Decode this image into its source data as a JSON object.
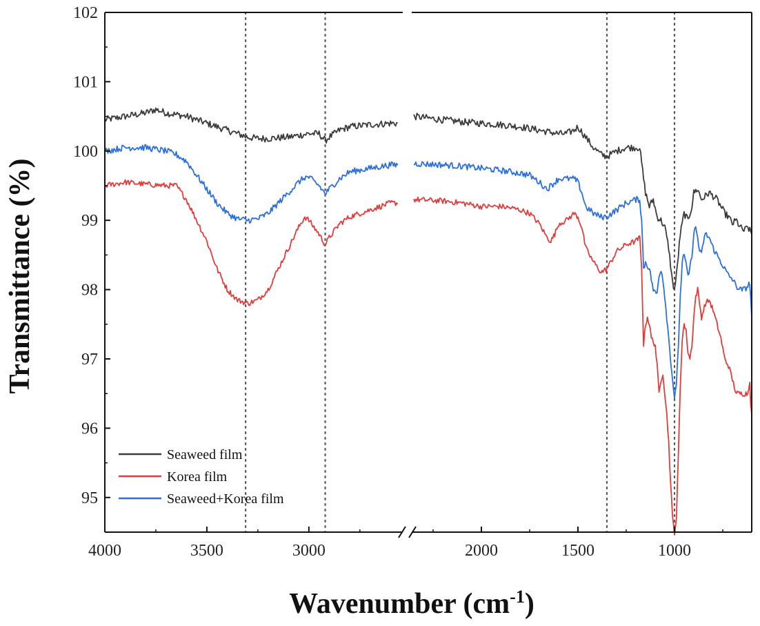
{
  "chart_data": {
    "type": "line",
    "title": "",
    "xlabel": "Wavenumber (cm",
    "xlabel_sup": "-1",
    "xlabel_close": ")",
    "ylabel": "Transmittance (%)",
    "xlim_left": [
      4000,
      2550
    ],
    "xlim_right": [
      2350,
      600
    ],
    "x_break": true,
    "ylim": [
      94.5,
      102
    ],
    "x_ticks": [
      4000,
      3500,
      3000,
      2000,
      1500,
      1000
    ],
    "x_tick_labels": [
      "4000",
      "3500",
      "3000",
      "2000",
      "1500",
      "1000"
    ],
    "y_ticks": [
      95,
      96,
      97,
      98,
      99,
      100,
      101,
      102
    ],
    "y_tick_labels": [
      "95",
      "96",
      "97",
      "98",
      "99",
      "100",
      "101",
      "102"
    ],
    "reference_lines": [
      3310,
      2920,
      1350,
      1000
    ],
    "legend_position": "bottom-left",
    "series": [
      {
        "name": "Seaweed film",
        "color": "#3a3a3a",
        "noise": 0.05,
        "x": [
          4000,
          3900,
          3800,
          3750,
          3700,
          3600,
          3500,
          3400,
          3350,
          3300,
          3250,
          3200,
          3100,
          3000,
          2950,
          2920,
          2900,
          2850,
          2800,
          2700,
          2600,
          2560,
          2350,
          2200,
          2100,
          2000,
          1900,
          1800,
          1700,
          1600,
          1560,
          1520,
          1500,
          1460,
          1420,
          1380,
          1350,
          1300,
          1250,
          1180,
          1160,
          1150,
          1130,
          1110,
          1090,
          1070,
          1050,
          1030,
          1010,
          1000,
          990,
          970,
          950,
          930,
          910,
          900,
          880,
          860,
          840,
          820,
          800,
          780,
          760,
          740,
          720,
          700,
          680,
          660,
          640,
          620,
          600
        ],
        "y": [
          100.45,
          100.5,
          100.55,
          100.6,
          100.55,
          100.5,
          100.4,
          100.3,
          100.25,
          100.2,
          100.18,
          100.18,
          100.2,
          100.25,
          100.25,
          100.15,
          100.2,
          100.3,
          100.35,
          100.38,
          100.4,
          100.4,
          100.5,
          100.45,
          100.42,
          100.4,
          100.38,
          100.35,
          100.3,
          100.25,
          100.25,
          100.3,
          100.35,
          100.2,
          100.05,
          99.95,
          99.92,
          100.0,
          100.05,
          100.05,
          99.6,
          99.4,
          99.2,
          99.3,
          99.05,
          99.0,
          98.9,
          98.6,
          98.1,
          98.0,
          98.2,
          98.8,
          99.1,
          99.0,
          99.2,
          99.4,
          99.45,
          99.3,
          99.35,
          99.4,
          99.35,
          99.3,
          99.2,
          99.1,
          99.05,
          98.95,
          99.0,
          98.9,
          98.85,
          98.9,
          98.8
        ]
      },
      {
        "name": "Korea film",
        "color": "#e03c3c",
        "noise": 0.04,
        "x": [
          4000,
          3900,
          3800,
          3700,
          3650,
          3600,
          3550,
          3500,
          3450,
          3400,
          3350,
          3300,
          3250,
          3200,
          3150,
          3100,
          3050,
          3020,
          3000,
          2950,
          2920,
          2900,
          2850,
          2800,
          2700,
          2600,
          2560,
          2350,
          2200,
          2100,
          2000,
          1900,
          1850,
          1800,
          1750,
          1700,
          1660,
          1640,
          1620,
          1600,
          1560,
          1520,
          1500,
          1480,
          1460,
          1420,
          1380,
          1350,
          1300,
          1250,
          1200,
          1180,
          1170,
          1160,
          1150,
          1140,
          1130,
          1120,
          1100,
          1090,
          1080,
          1070,
          1060,
          1050,
          1040,
          1030,
          1020,
          1010,
          1000,
          990,
          980,
          970,
          960,
          950,
          940,
          930,
          920,
          910,
          900,
          890,
          880,
          870,
          860,
          850,
          840,
          820,
          800,
          780,
          760,
          740,
          720,
          700,
          690,
          680,
          660,
          640,
          620,
          610,
          605,
          600
        ],
        "y": [
          99.5,
          99.55,
          99.52,
          99.5,
          99.5,
          99.3,
          99.0,
          98.7,
          98.3,
          98.0,
          97.85,
          97.8,
          97.85,
          98.0,
          98.3,
          98.6,
          98.9,
          99.05,
          99.0,
          98.8,
          98.65,
          98.75,
          98.95,
          99.05,
          99.15,
          99.25,
          99.25,
          99.3,
          99.28,
          99.25,
          99.2,
          99.2,
          99.18,
          99.15,
          99.1,
          98.95,
          98.75,
          98.7,
          98.8,
          98.95,
          99.0,
          99.1,
          99.05,
          98.9,
          98.6,
          98.4,
          98.25,
          98.3,
          98.55,
          98.65,
          98.7,
          98.75,
          98.3,
          97.2,
          97.5,
          97.6,
          97.5,
          97.3,
          97.2,
          96.9,
          96.5,
          96.7,
          96.8,
          96.5,
          96.2,
          95.8,
          95.2,
          94.7,
          94.5,
          94.7,
          95.6,
          96.6,
          97.3,
          97.5,
          97.4,
          97.1,
          97.0,
          97.2,
          97.6,
          97.9,
          98.0,
          97.8,
          97.6,
          97.7,
          97.8,
          97.85,
          97.7,
          97.5,
          97.3,
          97.0,
          96.9,
          96.7,
          96.6,
          96.5,
          96.5,
          96.5,
          96.5,
          96.7,
          96.3,
          96.2
        ]
      },
      {
        "name": "Seaweed+Korea film",
        "color": "#2a6fdb",
        "noise": 0.045,
        "x": [
          4000,
          3900,
          3800,
          3700,
          3650,
          3600,
          3550,
          3500,
          3450,
          3400,
          3350,
          3300,
          3250,
          3200,
          3150,
          3100,
          3050,
          3020,
          3000,
          2950,
          2920,
          2900,
          2850,
          2800,
          2700,
          2600,
          2560,
          2350,
          2200,
          2100,
          2000,
          1900,
          1850,
          1800,
          1750,
          1700,
          1660,
          1640,
          1620,
          1600,
          1560,
          1520,
          1500,
          1480,
          1460,
          1420,
          1380,
          1350,
          1300,
          1250,
          1200,
          1180,
          1170,
          1160,
          1150,
          1130,
          1110,
          1100,
          1090,
          1080,
          1070,
          1060,
          1050,
          1040,
          1030,
          1020,
          1010,
          1000,
          990,
          980,
          970,
          960,
          950,
          940,
          930,
          920,
          910,
          900,
          890,
          880,
          870,
          860,
          850,
          840,
          820,
          800,
          780,
          760,
          740,
          720,
          700,
          680,
          660,
          640,
          620,
          610,
          600
        ],
        "y": [
          100.0,
          100.05,
          100.05,
          100.0,
          99.95,
          99.85,
          99.65,
          99.45,
          99.25,
          99.1,
          99.02,
          99.0,
          99.02,
          99.1,
          99.25,
          99.4,
          99.55,
          99.62,
          99.62,
          99.5,
          99.38,
          99.45,
          99.6,
          99.7,
          99.75,
          99.8,
          99.8,
          99.82,
          99.8,
          99.78,
          99.75,
          99.72,
          99.7,
          99.68,
          99.65,
          99.55,
          99.45,
          99.5,
          99.55,
          99.6,
          99.6,
          99.6,
          99.55,
          99.4,
          99.2,
          99.1,
          99.05,
          99.05,
          99.15,
          99.25,
          99.3,
          99.3,
          99.0,
          98.3,
          98.4,
          98.3,
          98.0,
          97.95,
          97.95,
          98.2,
          98.3,
          98.15,
          97.9,
          97.6,
          97.3,
          97.0,
          96.7,
          96.45,
          96.6,
          97.2,
          97.9,
          98.4,
          98.5,
          98.35,
          98.2,
          98.3,
          98.5,
          98.8,
          98.9,
          98.75,
          98.55,
          98.5,
          98.7,
          98.8,
          98.75,
          98.6,
          98.5,
          98.4,
          98.3,
          98.2,
          98.15,
          98.05,
          98.0,
          98.0,
          98.05,
          98.1,
          97.6
        ]
      }
    ]
  }
}
